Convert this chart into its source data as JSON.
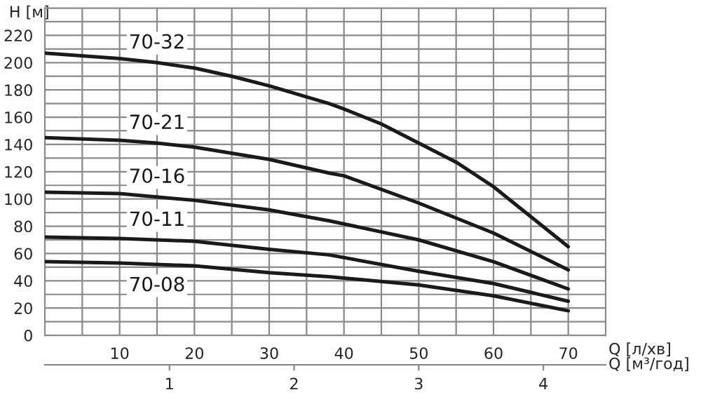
{
  "chart_data": {
    "type": "line",
    "ylabel": "H [м]",
    "xlabel": "Q [л/хв]",
    "x2label": "Q [м³/год]",
    "x": [
      0,
      10,
      15,
      20,
      25,
      30,
      38,
      40,
      45,
      50,
      55,
      60,
      65,
      70
    ],
    "series": [
      {
        "name": "70-32",
        "color": "#1a1a1a",
        "values": [
          207,
          203,
          200,
          196,
          190,
          183,
          170,
          166,
          155,
          141,
          127,
          109,
          87,
          65
        ]
      },
      {
        "name": "70-21",
        "color": "#1a1a1a",
        "x": [
          0,
          10,
          15,
          20,
          30,
          38,
          40,
          50,
          60,
          70
        ],
        "values": [
          145,
          143,
          141,
          138,
          129,
          119,
          117,
          97,
          75,
          48
        ]
      },
      {
        "name": "70-16",
        "color": "#1a1a1a",
        "x": [
          0,
          10,
          20,
          30,
          38,
          50,
          60,
          70
        ],
        "values": [
          105,
          104,
          99,
          92,
          84,
          70,
          54,
          34
        ]
      },
      {
        "name": "70-11",
        "color": "#1a1a1a",
        "x": [
          0,
          10,
          20,
          30,
          38,
          50,
          60,
          70
        ],
        "values": [
          72,
          71,
          69,
          63,
          59,
          47,
          38,
          25
        ]
      },
      {
        "name": "70-08",
        "color": "#1a1a1a",
        "x": [
          0,
          10,
          20,
          30,
          38,
          50,
          60,
          70
        ],
        "values": [
          54,
          53,
          51,
          46,
          43,
          37,
          29,
          18
        ]
      }
    ],
    "xlim": [
      0,
      75
    ],
    "ylim": [
      0,
      240
    ],
    "xticks": [
      {
        "value": 5,
        "label": null
      },
      10,
      {
        "value": 15,
        "label": null
      },
      20,
      {
        "value": 25,
        "label": null
      },
      30,
      {
        "value": 35,
        "label": null
      },
      40,
      {
        "value": 45,
        "label": null
      },
      50,
      {
        "value": 55,
        "label": null
      },
      60,
      {
        "value": 65,
        "label": null
      },
      70
    ],
    "yticks": [
      0,
      {
        "value": 10,
        "label": null
      },
      20,
      {
        "value": 30,
        "label": null
      },
      40,
      {
        "value": 50,
        "label": null
      },
      60,
      {
        "value": 70,
        "label": null
      },
      80,
      {
        "value": 90,
        "label": null
      },
      100,
      {
        "value": 110,
        "label": null
      },
      120,
      {
        "value": 130,
        "label": null
      },
      140,
      {
        "value": 150,
        "label": null
      },
      160,
      {
        "value": 170,
        "label": null
      },
      180,
      {
        "value": 190,
        "label": null
      },
      200,
      {
        "value": 210,
        "label": null
      },
      220,
      {
        "value": 230,
        "label": null
      }
    ],
    "x2lim": [
      0,
      4.5
    ],
    "x2ticks": [
      1,
      2,
      3,
      4
    ],
    "grid": true,
    "line_style": "solid",
    "marker": "none",
    "legend": false
  }
}
